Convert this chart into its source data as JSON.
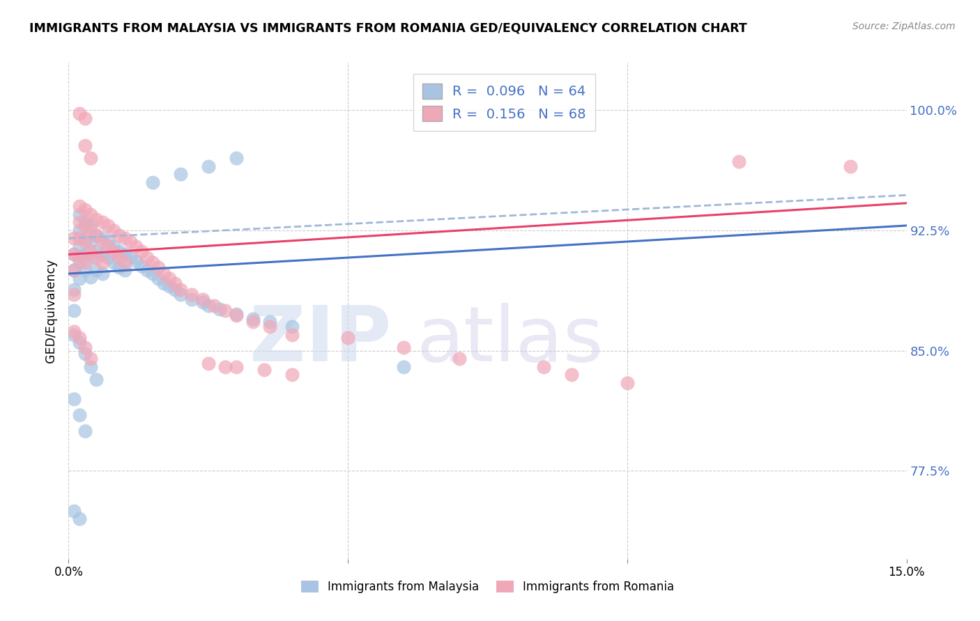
{
  "title": "IMMIGRANTS FROM MALAYSIA VS IMMIGRANTS FROM ROMANIA GED/EQUIVALENCY CORRELATION CHART",
  "source": "Source: ZipAtlas.com",
  "ylabel": "GED/Equivalency",
  "yticks_labels": [
    "77.5%",
    "85.0%",
    "92.5%",
    "100.0%"
  ],
  "ytick_vals": [
    0.775,
    0.85,
    0.925,
    1.0
  ],
  "xrange": [
    0.0,
    0.15
  ],
  "yrange": [
    0.72,
    1.03
  ],
  "malaysia_color": "#a8c4e2",
  "romania_color": "#f0a8b8",
  "malaysia_line_color": "#4472c4",
  "romania_line_color": "#e8406a",
  "dash_color": "#a0b8d8",
  "r_malaysia": "0.096",
  "n_malaysia": "64",
  "r_romania": "0.156",
  "n_romania": "68",
  "malaysia_x": [
    0.001,
    0.001,
    0.001,
    0.001,
    0.002,
    0.002,
    0.002,
    0.002,
    0.002,
    0.003,
    0.003,
    0.003,
    0.003,
    0.004,
    0.004,
    0.004,
    0.004,
    0.005,
    0.005,
    0.005,
    0.006,
    0.006,
    0.006,
    0.007,
    0.007,
    0.008,
    0.008,
    0.009,
    0.009,
    0.01,
    0.01,
    0.011,
    0.012,
    0.013,
    0.014,
    0.015,
    0.016,
    0.017,
    0.018,
    0.019,
    0.02,
    0.022,
    0.024,
    0.025,
    0.027,
    0.03,
    0.033,
    0.036,
    0.04,
    0.001,
    0.002,
    0.003,
    0.004,
    0.005,
    0.001,
    0.002,
    0.003,
    0.06,
    0.001,
    0.002,
    0.015,
    0.02,
    0.025,
    0.03
  ],
  "malaysia_y": [
    0.91,
    0.9,
    0.888,
    0.875,
    0.935,
    0.925,
    0.915,
    0.905,
    0.895,
    0.93,
    0.92,
    0.91,
    0.9,
    0.928,
    0.918,
    0.908,
    0.896,
    0.922,
    0.912,
    0.9,
    0.92,
    0.91,
    0.898,
    0.918,
    0.908,
    0.915,
    0.905,
    0.912,
    0.902,
    0.91,
    0.9,
    0.908,
    0.906,
    0.903,
    0.9,
    0.898,
    0.895,
    0.892,
    0.89,
    0.888,
    0.885,
    0.882,
    0.88,
    0.878,
    0.876,
    0.873,
    0.87,
    0.868,
    0.865,
    0.86,
    0.855,
    0.848,
    0.84,
    0.832,
    0.82,
    0.81,
    0.8,
    0.84,
    0.75,
    0.745,
    0.955,
    0.96,
    0.965,
    0.97
  ],
  "romania_x": [
    0.001,
    0.001,
    0.001,
    0.001,
    0.002,
    0.002,
    0.002,
    0.002,
    0.003,
    0.003,
    0.003,
    0.003,
    0.004,
    0.004,
    0.004,
    0.005,
    0.005,
    0.005,
    0.006,
    0.006,
    0.006,
    0.007,
    0.007,
    0.008,
    0.008,
    0.009,
    0.009,
    0.01,
    0.01,
    0.011,
    0.012,
    0.013,
    0.014,
    0.015,
    0.016,
    0.017,
    0.018,
    0.019,
    0.02,
    0.022,
    0.024,
    0.026,
    0.028,
    0.03,
    0.033,
    0.036,
    0.04,
    0.001,
    0.002,
    0.003,
    0.004,
    0.05,
    0.06,
    0.07,
    0.085,
    0.09,
    0.1,
    0.12,
    0.14,
    0.03,
    0.035,
    0.04,
    0.025,
    0.028,
    0.002,
    0.003,
    0.003,
    0.004
  ],
  "romania_y": [
    0.92,
    0.91,
    0.9,
    0.885,
    0.94,
    0.93,
    0.92,
    0.908,
    0.938,
    0.928,
    0.918,
    0.905,
    0.935,
    0.925,
    0.912,
    0.932,
    0.922,
    0.908,
    0.93,
    0.918,
    0.905,
    0.928,
    0.915,
    0.925,
    0.912,
    0.922,
    0.908,
    0.92,
    0.905,
    0.918,
    0.915,
    0.912,
    0.908,
    0.905,
    0.902,
    0.898,
    0.895,
    0.892,
    0.888,
    0.885,
    0.882,
    0.878,
    0.875,
    0.872,
    0.868,
    0.865,
    0.86,
    0.862,
    0.858,
    0.852,
    0.845,
    0.858,
    0.852,
    0.845,
    0.84,
    0.835,
    0.83,
    0.968,
    0.965,
    0.84,
    0.838,
    0.835,
    0.842,
    0.84,
    0.998,
    0.995,
    0.978,
    0.97
  ]
}
